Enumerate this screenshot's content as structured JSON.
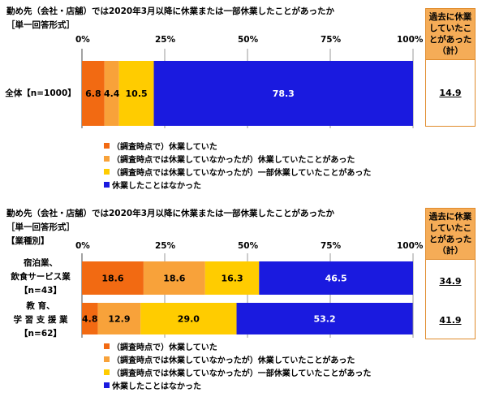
{
  "colors": {
    "suspended_at_survey": "#f26a12",
    "suspended_before": "#f8a23a",
    "partial": "#ffcc00",
    "never": "#1a1adf",
    "box_header": "#f5ac57",
    "box_border": "#e08b2c"
  },
  "chart_data": [
    {
      "type": "bar",
      "orientation": "horizontal",
      "stacked": true,
      "title": "勤め先（会社・店舗）では2020年3月以降に休業または一部休業したことがあったか",
      "subtitle": "［単一回答形式］",
      "xlim": [
        0,
        100
      ],
      "xticks": [
        "0%",
        "25%",
        "50%",
        "75%",
        "100%"
      ],
      "categories": [
        "全体【n=1000】"
      ],
      "series": [
        {
          "name": "（調査時点で）休業していた",
          "values": [
            6.8
          ]
        },
        {
          "name": "（調査時点では休業していなかったが）休業していたことがあった",
          "values": [
            4.4
          ]
        },
        {
          "name": "（調査時点では休業していなかったが）一部休業していたことがあった",
          "values": [
            10.5
          ]
        },
        {
          "name": "休業したことはなかった",
          "values": [
            78.3
          ]
        }
      ],
      "summary_header": "過去に休業していたことがあった（計）",
      "summary_values": [
        "14.9"
      ],
      "legend_position": "bottom-left",
      "grid": true
    },
    {
      "type": "bar",
      "orientation": "horizontal",
      "stacked": true,
      "title": "勤め先（会社・店舗）では2020年3月以降に休業または一部休業したことがあったか",
      "subtitle": "［単一回答形式］",
      "subtitle2": "【業種別】",
      "xlim": [
        0,
        100
      ],
      "xticks": [
        "0%",
        "25%",
        "50%",
        "75%",
        "100%"
      ],
      "categories": [
        [
          "宿泊業、",
          "飲食サービス業",
          "【n=43】"
        ],
        [
          "教 育、",
          "学 習 支 援 業",
          "【n=62】"
        ]
      ],
      "series": [
        {
          "name": "（調査時点で）休業していた",
          "values": [
            18.6,
            4.8
          ]
        },
        {
          "name": "（調査時点では休業していなかったが）休業していたことがあった",
          "values": [
            18.6,
            12.9
          ]
        },
        {
          "name": "（調査時点では休業していなかったが）一部休業していたことがあった",
          "values": [
            16.3,
            29.0
          ]
        },
        {
          "name": "休業したことはなかった",
          "values": [
            46.5,
            53.2
          ]
        }
      ],
      "summary_header": "過去に休業していたことがあった（計）",
      "summary_values": [
        "34.9",
        "41.9"
      ],
      "legend_position": "bottom-left",
      "grid": true
    }
  ]
}
